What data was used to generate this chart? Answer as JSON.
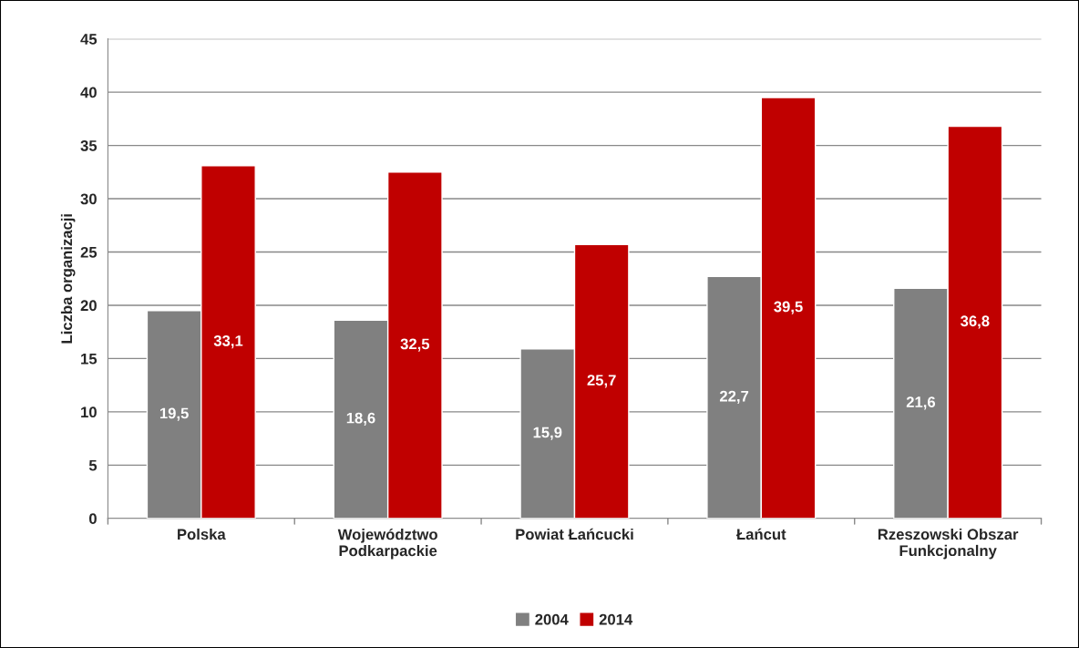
{
  "chart_data": {
    "type": "bar",
    "ylabel": "Liczba organizacji",
    "categories": [
      "Polska",
      "Województwo\nPodkarpackie",
      "Powiat Łańcucki",
      "Łańcut",
      "Rzeszowski Obszar\nFunkcjonalny"
    ],
    "series": [
      {
        "name": "2004",
        "color": "#808080",
        "values": [
          19.5,
          18.6,
          15.9,
          22.7,
          21.6
        ],
        "value_labels": [
          "19,5",
          "18,6",
          "15,9",
          "22,7",
          "21,6"
        ]
      },
      {
        "name": "2014",
        "color": "#c00000",
        "values": [
          33.1,
          32.5,
          25.7,
          39.5,
          36.8
        ],
        "value_labels": [
          "33,1",
          "32,5",
          "25,7",
          "39,5",
          "36,8"
        ]
      }
    ],
    "ylim": [
      0,
      45
    ],
    "yticks": [
      0,
      5,
      10,
      15,
      20,
      25,
      30,
      35,
      40,
      45
    ],
    "grid": "y",
    "legend": "bottom"
  }
}
